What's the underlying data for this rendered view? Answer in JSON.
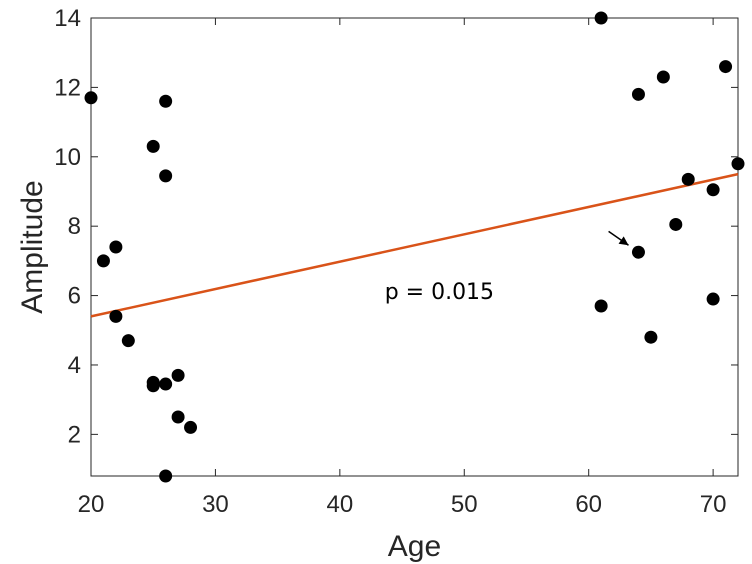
{
  "chart_data": {
    "type": "scatter",
    "title": "",
    "xlabel": "Age",
    "ylabel": "Amplitude",
    "xlim": [
      20,
      72
    ],
    "ylim": [
      0.8,
      14
    ],
    "xticks": [
      20,
      30,
      40,
      50,
      60,
      70
    ],
    "yticks": [
      2,
      4,
      6,
      8,
      10,
      12,
      14
    ],
    "grid": false,
    "series": [
      {
        "name": "subjects",
        "color": "#000000",
        "points": [
          {
            "x": 20,
            "y": 11.7
          },
          {
            "x": 21,
            "y": 7.0
          },
          {
            "x": 22,
            "y": 7.4
          },
          {
            "x": 22,
            "y": 5.4
          },
          {
            "x": 23,
            "y": 4.7
          },
          {
            "x": 25,
            "y": 10.3
          },
          {
            "x": 25,
            "y": 3.5
          },
          {
            "x": 25,
            "y": 3.4
          },
          {
            "x": 26,
            "y": 11.6
          },
          {
            "x": 26,
            "y": 9.45
          },
          {
            "x": 26,
            "y": 3.45
          },
          {
            "x": 26,
            "y": 0.8
          },
          {
            "x": 27,
            "y": 3.7
          },
          {
            "x": 27,
            "y": 2.5
          },
          {
            "x": 28,
            "y": 2.2
          },
          {
            "x": 61,
            "y": 14.0
          },
          {
            "x": 61,
            "y": 5.7
          },
          {
            "x": 64,
            "y": 11.8
          },
          {
            "x": 64,
            "y": 7.25
          },
          {
            "x": 65,
            "y": 4.8
          },
          {
            "x": 66,
            "y": 12.3
          },
          {
            "x": 67,
            "y": 8.05
          },
          {
            "x": 68,
            "y": 9.35
          },
          {
            "x": 70,
            "y": 9.05
          },
          {
            "x": 70,
            "y": 5.9
          },
          {
            "x": 71,
            "y": 12.6
          },
          {
            "x": 72,
            "y": 9.8
          }
        ]
      }
    ],
    "fit_line": {
      "color": "#D95319",
      "x": [
        20,
        72
      ],
      "y": [
        5.4,
        9.5
      ]
    },
    "annotations": [
      {
        "text": "p = 0.015",
        "x": 48,
        "y": 5.9
      },
      {
        "type": "arrow",
        "from": [
          61.6,
          7.85
        ],
        "to": [
          63.2,
          7.45
        ]
      }
    ]
  }
}
